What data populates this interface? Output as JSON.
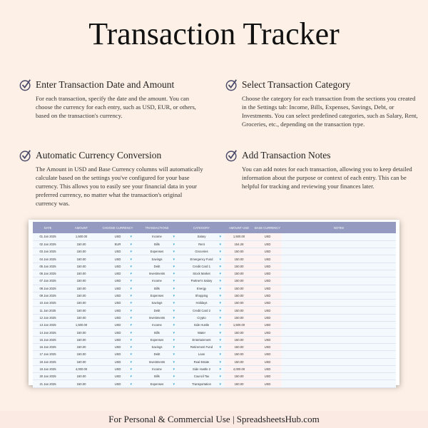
{
  "title": "Transaction Tracker",
  "features": [
    {
      "heading": "Enter Transaction Date and Amount",
      "text": "For each transaction, specify the date and the amount. You can choose the currency for each entry, such as USD, EUR, or others, based on the transaction's currency."
    },
    {
      "heading": "Select Transaction Category",
      "text": "Choose the category for each transaction from the sections you created in the Settings tab: Income, Bills, Expenses, Savings, Debt, or Investments. You can select predefined categories, such as Salary, Rent, Groceries, etc., depending on the transaction type."
    },
    {
      "heading": "Automatic Currency Conversion",
      "text": "The Amount in USD and Base Currency columns will automatically calculate based on the settings you've configured for your base currency. This allows you to easily see your financial data in your preferred currency, no matter what the transaction's original currency was."
    },
    {
      "heading": "Add Transaction Notes",
      "text": "You can add notes for each transaction, allowing you to keep detailed information about the purpose or context of each entry. This can be helpful for tracking and reviewing your finances later."
    }
  ],
  "table": {
    "headers": [
      "DATE",
      "AMOUNT",
      "CHOOSE CURRENCY",
      "TRANSACTIONS",
      "CATEGORY",
      "AMOUNT USD",
      "BASE CURRENCY",
      "NOTES"
    ],
    "rows": [
      [
        "01 Jan 2025",
        "1,500.00",
        "USD",
        "Income",
        "Salary",
        "1,500.00",
        "USD"
      ],
      [
        "02 Jan 2025",
        "150.00",
        "EUR",
        "Bills",
        "Rent",
        "154.28",
        "USD"
      ],
      [
        "03 Jan 2025",
        "150.00",
        "USD",
        "Expenses",
        "Groceries",
        "150.00",
        "USD"
      ],
      [
        "04 Jan 2025",
        "150.00",
        "USD",
        "Savings",
        "Emergency Fund",
        "150.00",
        "USD"
      ],
      [
        "05 Jan 2025",
        "150.00",
        "USD",
        "Debt",
        "Credit Card 1",
        "150.00",
        "USD"
      ],
      [
        "06 Jan 2025",
        "150.00",
        "USD",
        "Investments",
        "Stock Market",
        "150.00",
        "USD"
      ],
      [
        "07 Jan 2025",
        "150.00",
        "USD",
        "Income",
        "Partner's Salary",
        "150.00",
        "USD"
      ],
      [
        "08 Jan 2025",
        "150.00",
        "USD",
        "Bills",
        "Energy",
        "150.00",
        "USD"
      ],
      [
        "09 Jan 2025",
        "150.00",
        "USD",
        "Expenses",
        "Shopping",
        "150.00",
        "USD"
      ],
      [
        "10 Jan 2025",
        "150.00",
        "USD",
        "Savings",
        "Holidays",
        "150.00",
        "USD"
      ],
      [
        "11 Jan 2025",
        "150.00",
        "USD",
        "Debt",
        "Credit Card 2",
        "150.00",
        "USD"
      ],
      [
        "12 Jan 2025",
        "150.00",
        "USD",
        "Investments",
        "Crypto",
        "150.00",
        "USD"
      ],
      [
        "13 Jan 2025",
        "1,500.00",
        "USD",
        "Income",
        "Side Hustle",
        "1,500.00",
        "USD"
      ],
      [
        "14 Jan 2025",
        "150.00",
        "USD",
        "Bills",
        "Water",
        "150.00",
        "USD"
      ],
      [
        "15 Jan 2025",
        "150.00",
        "USD",
        "Expenses",
        "Entertainment",
        "150.00",
        "USD"
      ],
      [
        "16 Jan 2025",
        "150.00",
        "USD",
        "Savings",
        "Retirement Fund",
        "150.00",
        "USD"
      ],
      [
        "17 Jan 2025",
        "150.00",
        "USD",
        "Debt",
        "Loan",
        "150.00",
        "USD"
      ],
      [
        "18 Jan 2025",
        "150.00",
        "USD",
        "Investments",
        "Real Estate",
        "150.00",
        "USD"
      ],
      [
        "19 Jan 2025",
        "4,000.00",
        "USD",
        "Income",
        "Side Hustle 2",
        "4,000.00",
        "USD"
      ],
      [
        "20 Jan 2025",
        "150.00",
        "USD",
        "Bills",
        "Council Tax",
        "150.00",
        "USD"
      ],
      [
        "21 Jan 2025",
        "150.00",
        "USD",
        "Expenses",
        "Transportation",
        "150.00",
        "USD"
      ]
    ]
  },
  "footer": "For Personal & Commercial Use  |  SpreadsheetsHub.com",
  "colors": {
    "background": "#fdf1e7",
    "header": "#949ac0",
    "dropdown": "#3aa3d6"
  }
}
